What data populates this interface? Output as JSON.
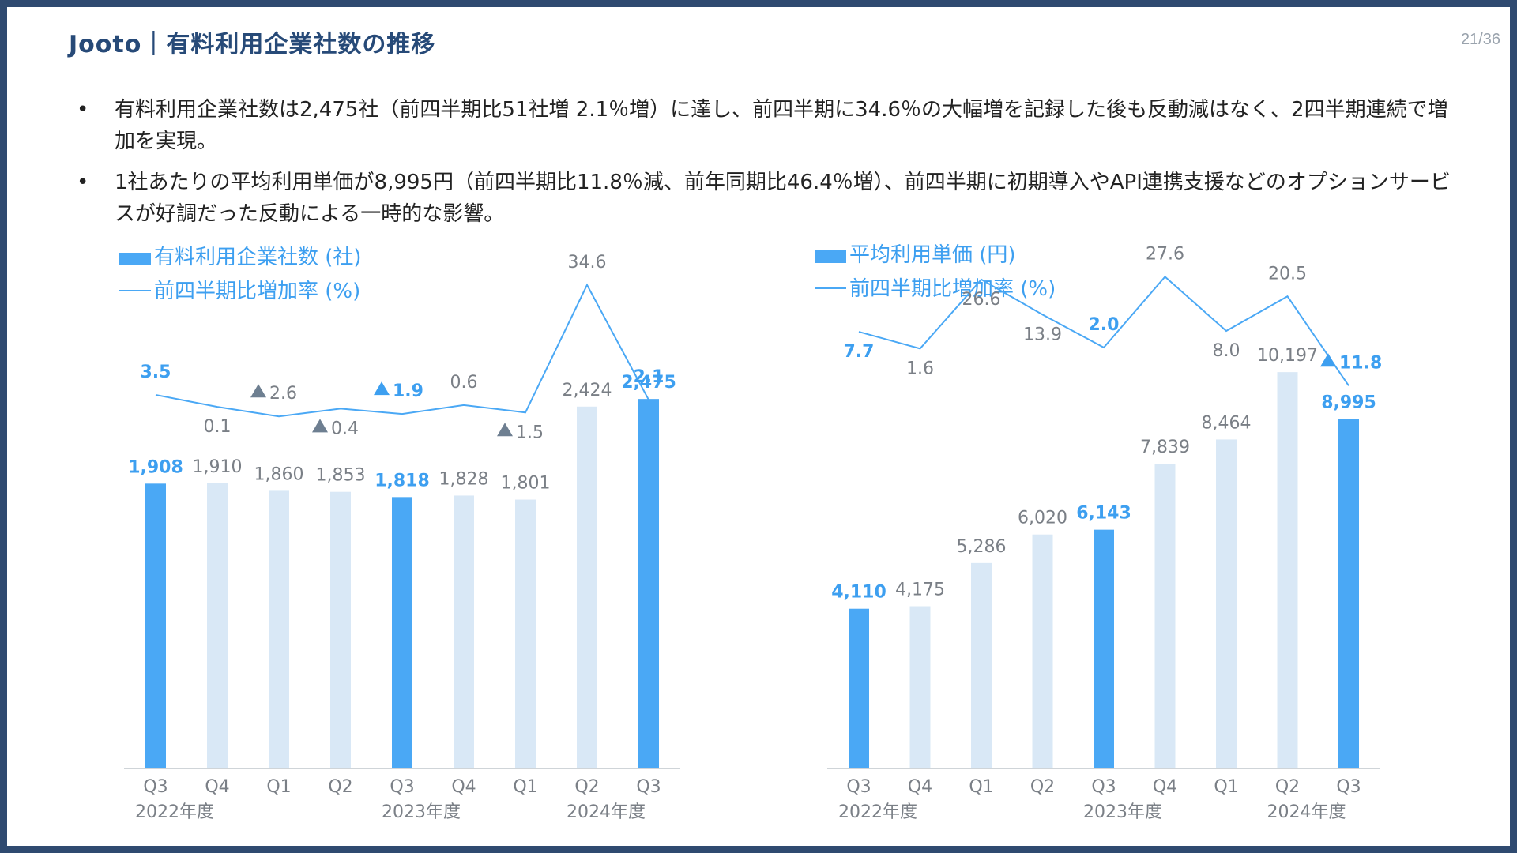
{
  "header": {
    "title": "Jooto｜有料利用企業社数の推移",
    "page_number": "21/36"
  },
  "bullets": [
    "有料利用企業社数は2,475社（前四半期比51社増 2.1％増）に達し、前四半期に34.6％の大幅増を記録した後も反動減はなく、2四半期連続で増加を実現。",
    "1社あたりの平均利用単価が8,995円（前四半期比11.8％減、前年同期比46.4％増）、前四半期に初期導入やAPI連携支援などのオプションサービスが好調だった反動による一時的な影響。"
  ],
  "colors": {
    "highlight_bar": "#4aa8f5",
    "normal_bar": "#d9e8f6",
    "line": "#4aa8f5",
    "highlight_label": "#3d9ff0",
    "normal_label": "#7a7f86",
    "decline_marker": "#6e7f91",
    "title": "#274a78",
    "frame": "#2f4a70"
  },
  "chart_data": [
    {
      "type": "bar",
      "legend": {
        "bar_label": "有料利用企業社数 (社)",
        "line_label": "前四半期比増加率 (%)"
      },
      "categories": [
        "Q3",
        "Q4",
        "Q1",
        "Q2",
        "Q3",
        "Q4",
        "Q1",
        "Q2",
        "Q3"
      ],
      "fiscal_year_labels": [
        "2022年度",
        "2023年度",
        "2024年度"
      ],
      "fiscal_year_start_index": [
        0,
        4,
        7
      ],
      "bars": {
        "name": "有料利用企業社数 (社)",
        "values": [
          1908,
          1910,
          1860,
          1853,
          1818,
          1828,
          1801,
          2424,
          2475
        ],
        "labels": [
          "1,908",
          "1,910",
          "1,860",
          "1,853",
          "1,818",
          "1,828",
          "1,801",
          "2,424",
          "2,475"
        ],
        "highlighted": [
          true,
          false,
          false,
          false,
          true,
          false,
          false,
          false,
          true
        ],
        "ylim": [
          0,
          3100
        ]
      },
      "line": {
        "name": "前四半期比増加率 (%)",
        "values": [
          3.5,
          0.1,
          -2.6,
          -0.4,
          -1.9,
          0.6,
          -1.5,
          34.6,
          2.1
        ],
        "labels": [
          "3.5",
          "0.1",
          "2.6",
          "0.4",
          "1.9",
          "0.6",
          "1.5",
          "34.6",
          "2.1"
        ],
        "decline": [
          false,
          false,
          true,
          true,
          true,
          false,
          true,
          false,
          false
        ],
        "highlighted": [
          true,
          false,
          false,
          false,
          true,
          false,
          false,
          false,
          true
        ],
        "label_above": [
          true,
          false,
          true,
          false,
          true,
          true,
          false,
          true,
          true
        ]
      }
    },
    {
      "type": "bar",
      "legend": {
        "bar_label": "平均利用単価 (円)",
        "line_label": "前四半期比増加率 (%)"
      },
      "categories": [
        "Q3",
        "Q4",
        "Q1",
        "Q2",
        "Q3",
        "Q4",
        "Q1",
        "Q2",
        "Q3"
      ],
      "fiscal_year_labels": [
        "2022年度",
        "2023年度",
        "2024年度"
      ],
      "fiscal_year_start_index": [
        0,
        4,
        7
      ],
      "bars": {
        "name": "平均利用単価 (円)",
        "values": [
          4110,
          4175,
          5286,
          6020,
          6143,
          7839,
          8464,
          10197,
          8995
        ],
        "labels": [
          "4,110",
          "4,175",
          "5,286",
          "6,020",
          "6,143",
          "7,839",
          "8,464",
          "10,197",
          "8,995"
        ],
        "highlighted": [
          true,
          false,
          false,
          false,
          true,
          false,
          false,
          false,
          true
        ],
        "ylim": [
          0,
          11500
        ]
      },
      "line": {
        "name": "前四半期比増加率 (%)",
        "values": [
          7.7,
          1.6,
          26.6,
          13.9,
          2.0,
          27.6,
          8.0,
          20.5,
          -11.8
        ],
        "labels": [
          "7.7",
          "1.6",
          "26.6",
          "13.9",
          "2.0",
          "27.6",
          "8.0",
          "20.5",
          "11.8"
        ],
        "decline": [
          false,
          false,
          false,
          false,
          false,
          false,
          false,
          false,
          true
        ],
        "highlighted": [
          true,
          false,
          false,
          false,
          true,
          false,
          false,
          false,
          true
        ],
        "label_above": [
          false,
          false,
          false,
          false,
          true,
          true,
          false,
          true,
          true
        ]
      }
    }
  ]
}
